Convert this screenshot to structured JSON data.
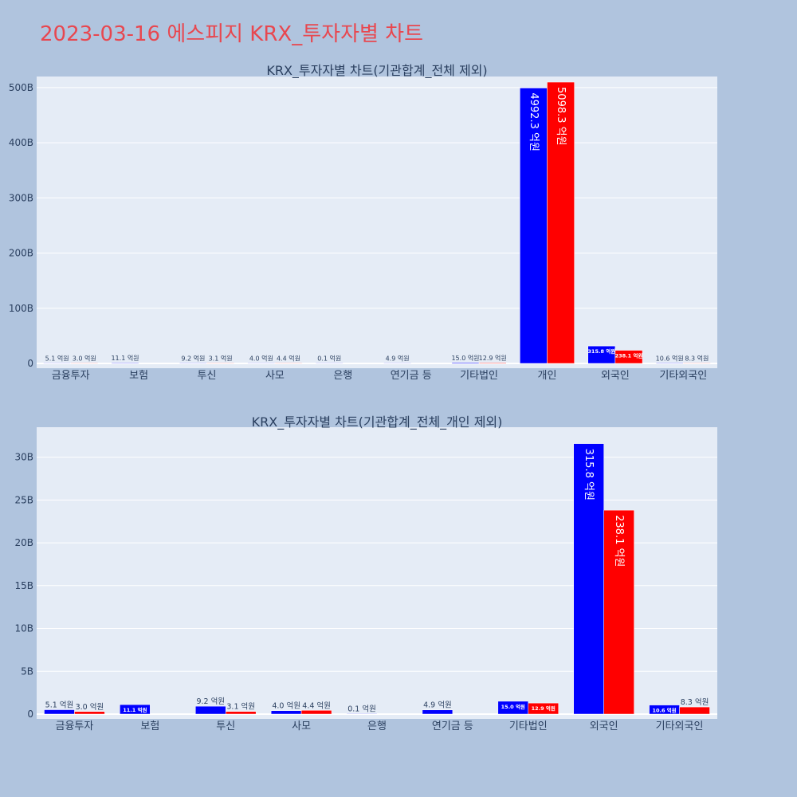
{
  "page_title": "2023-03-16 에스피지 KRX_투자자별 차트",
  "colors": {
    "series_blue": "#0000ff",
    "series_red": "#ff0000",
    "plot_bg": "#e5ecf6",
    "page_bg": "#b0c4de",
    "title": "#e8474f"
  },
  "chart_data": [
    {
      "type": "bar",
      "title": "KRX_투자자별 차트(기관합계_전체 제외)",
      "categories": [
        "금융투자",
        "보험",
        "투신",
        "사모",
        "은행",
        "연기금 등",
        "기타법인",
        "개인",
        "외국인",
        "기타외국인"
      ],
      "ylim": [
        0,
        520000000000.0
      ],
      "yticks": [
        0,
        100000000000.0,
        200000000000.0,
        300000000000.0,
        400000000000.0,
        500000000000.0
      ],
      "ytick_labels": [
        "0",
        "100B",
        "200B",
        "300B",
        "400B",
        "500B"
      ],
      "grid": true,
      "series": [
        {
          "values": [
            510000000.0,
            1110000000.0,
            920000000.0,
            400000000.0,
            10000000.0,
            490000000.0,
            1500000000.0,
            499230000000.0,
            31580000000.0,
            1060000000.0
          ],
          "labels": [
            "5.1 억원",
            "11.1 억원",
            "9.2 억원",
            "4.0 억원",
            "0.1 억원",
            "4.9 억원",
            "15.0 억원",
            "4992.3 억원",
            "315.8 억원",
            "10.6 억원"
          ]
        },
        {
          "values": [
            300000000.0,
            null,
            310000000.0,
            440000000.0,
            null,
            null,
            1290000000.0,
            509830000000.0,
            23810000000.0,
            830000000.0
          ],
          "labels": [
            "3.0 억원",
            "",
            "3.1 억원",
            "4.4 억원",
            "",
            "",
            "12.9 억원",
            "5098.3 억원",
            "238.1 억원",
            "8.3 억원"
          ]
        }
      ]
    },
    {
      "type": "bar",
      "title": "KRX_투자자별 차트(기관합계_전체_개인 제외)",
      "categories": [
        "금융투자",
        "보험",
        "투신",
        "사모",
        "은행",
        "연기금 등",
        "기타법인",
        "외국인",
        "기타외국인"
      ],
      "ylim": [
        0,
        33500000000.0
      ],
      "yticks": [
        0,
        5000000000.0,
        10000000000.0,
        15000000000.0,
        20000000000.0,
        25000000000.0,
        30000000000.0
      ],
      "ytick_labels": [
        "0",
        "5B",
        "10B",
        "15B",
        "20B",
        "25B",
        "30B"
      ],
      "grid": true,
      "series": [
        {
          "values": [
            510000000.0,
            1110000000.0,
            920000000.0,
            400000000.0,
            10000000.0,
            490000000.0,
            1500000000.0,
            31580000000.0,
            1060000000.0
          ],
          "labels": [
            "5.1 억원",
            "11.1 억원",
            "9.2 억원",
            "4.0 억원",
            "0.1 억원",
            "4.9 억원",
            "15.0 억원",
            "315.8 억원",
            "10.6 억원"
          ]
        },
        {
          "values": [
            300000000.0,
            null,
            310000000.0,
            440000000.0,
            null,
            null,
            1290000000.0,
            23810000000.0,
            830000000.0
          ],
          "labels": [
            "3.0 억원",
            "",
            "3.1 억원",
            "4.4 억원",
            "",
            "",
            "12.9 억원",
            "238.1 억원",
            "8.3 억원"
          ]
        }
      ]
    }
  ]
}
